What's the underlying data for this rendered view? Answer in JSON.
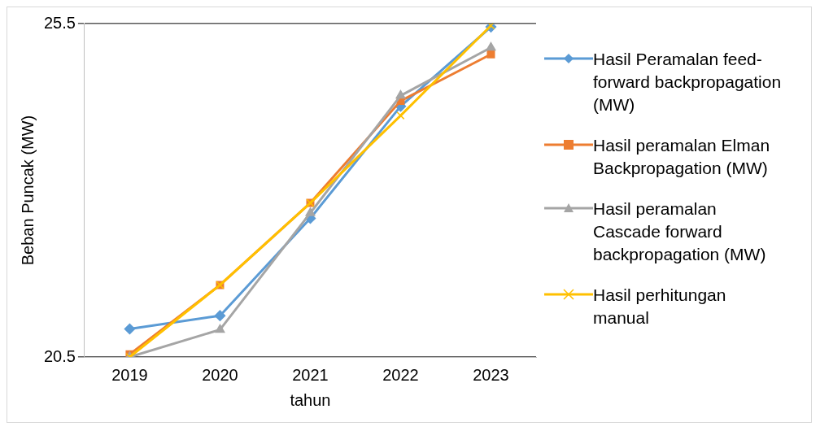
{
  "chart_data": {
    "type": "line",
    "xlabel": "tahun",
    "ylabel": "Beban Puncak (MW)",
    "categories": [
      "2019",
      "2020",
      "2021",
      "2022",
      "2023"
    ],
    "series": [
      {
        "name": "Hasil Peramalan feed-forward backpropagation (MW)",
        "color": "#5b9bd5",
        "marker": "diamond",
        "values": [
          20.92,
          21.12,
          22.58,
          24.26,
          25.45
        ]
      },
      {
        "name": "Hasil peramalan Elman Backpropagation (MW)",
        "color": "#ed7d31",
        "marker": "square",
        "values": [
          20.54,
          21.58,
          22.81,
          24.34,
          25.04
        ]
      },
      {
        "name": "Hasil peramalan Cascade forward backpropagation (MW)",
        "color": "#a5a5a5",
        "marker": "triangle",
        "values": [
          20.5,
          20.91,
          22.66,
          24.42,
          25.14
        ]
      },
      {
        "name": "Hasil perhitungan manual",
        "color": "#ffc000",
        "marker": "cross",
        "values": [
          20.5,
          21.58,
          22.81,
          24.12,
          25.47
        ]
      }
    ],
    "ylim": [
      20.5,
      25.5
    ],
    "yticks": [
      20.5,
      25.5
    ],
    "grid": "y",
    "legend": "right",
    "line_style": "solid"
  }
}
